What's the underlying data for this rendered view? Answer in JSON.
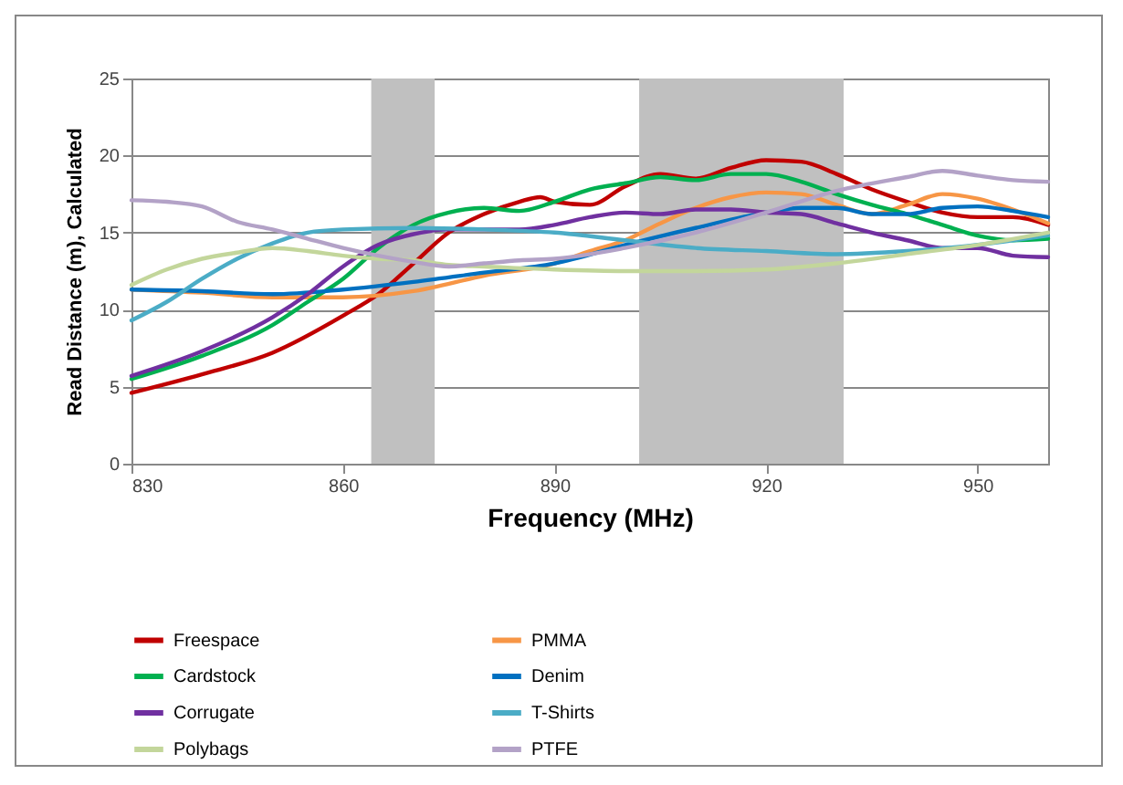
{
  "chart_data": {
    "type": "line",
    "xlabel": "Frequency (MHz)",
    "ylabel": "Read Distance (m), Calculated",
    "xlim": [
      830,
      960
    ],
    "xticks": [
      830,
      860,
      890,
      920,
      950
    ],
    "ylim": [
      0,
      25
    ],
    "yticks": [
      0,
      5,
      10,
      15,
      20,
      25
    ],
    "grid": "y",
    "legend": "bottom",
    "marker": "none",
    "line_style": "solid",
    "bands": [
      {
        "axis": "x",
        "from": 864,
        "to": 873,
        "color": "#c0c0c0"
      },
      {
        "axis": "x",
        "from": 902,
        "to": 931,
        "color": "#c0c0c0"
      }
    ],
    "series": [
      {
        "name": "Freespace",
        "color": "#c00000",
        "x": [
          830,
          840,
          850,
          860,
          865,
          870,
          875,
          880,
          885,
          888,
          890,
          895,
          900,
          905,
          910,
          915,
          920,
          925,
          930,
          935,
          940,
          945,
          950,
          955,
          960
        ],
        "values": [
          4.6,
          5.8,
          7.2,
          9.6,
          11,
          13,
          15,
          16.2,
          17,
          17.3,
          17,
          16.8,
          18,
          18.8,
          18.5,
          19.2,
          19.7,
          19.6,
          18.8,
          17.8,
          17,
          16.3,
          16,
          16,
          15.5
        ]
      },
      {
        "name": "PMMA",
        "color": "#f79646",
        "x": [
          830,
          840,
          850,
          860,
          870,
          880,
          890,
          895,
          900,
          905,
          910,
          915,
          920,
          925,
          930,
          935,
          940,
          945,
          950,
          955,
          960
        ],
        "values": [
          11.3,
          11.1,
          10.8,
          10.8,
          11.2,
          12.2,
          13,
          13.8,
          14.5,
          15.6,
          16.6,
          17.3,
          17.6,
          17.5,
          16.8,
          16.2,
          16.8,
          17.5,
          17.2,
          16.5,
          15.6
        ]
      },
      {
        "name": "Cardstock",
        "color": "#00b050",
        "x": [
          830,
          840,
          850,
          855,
          860,
          865,
          870,
          875,
          880,
          885,
          890,
          895,
          900,
          905,
          910,
          915,
          920,
          925,
          930,
          935,
          940,
          945,
          950,
          955,
          960
        ],
        "values": [
          5.5,
          7,
          9,
          10.5,
          12,
          14,
          15.5,
          16.3,
          16.6,
          16.4,
          17,
          17.8,
          18.2,
          18.6,
          18.4,
          18.8,
          18.8,
          18.3,
          17.5,
          16.8,
          16.2,
          15.5,
          14.8,
          14.5,
          14.6
        ]
      },
      {
        "name": "Denim",
        "color": "#0070c0",
        "x": [
          830,
          840,
          850,
          860,
          870,
          880,
          890,
          900,
          910,
          920,
          925,
          930,
          935,
          940,
          945,
          950,
          955,
          960
        ],
        "values": [
          11.3,
          11.2,
          11,
          11.3,
          11.8,
          12.4,
          13,
          14.2,
          15.3,
          16.3,
          16.6,
          16.6,
          16.2,
          16.2,
          16.6,
          16.7,
          16.4,
          16
        ]
      },
      {
        "name": "Corrugate",
        "color": "#7030a0",
        "x": [
          830,
          840,
          850,
          855,
          860,
          865,
          870,
          875,
          880,
          885,
          890,
          895,
          900,
          905,
          910,
          915,
          920,
          925,
          930,
          935,
          940,
          945,
          950,
          955,
          960
        ],
        "values": [
          5.7,
          7.3,
          9.5,
          11,
          12.8,
          14.2,
          14.9,
          15.2,
          15.2,
          15.2,
          15.5,
          16,
          16.3,
          16.2,
          16.5,
          16.5,
          16.3,
          16.2,
          15.6,
          15,
          14.5,
          14,
          14,
          13.5,
          13.4
        ]
      },
      {
        "name": "T-Shirts",
        "color": "#4bacc6",
        "x": [
          830,
          835,
          840,
          845,
          850,
          855,
          860,
          870,
          880,
          890,
          900,
          910,
          920,
          930,
          940,
          950,
          955,
          960
        ],
        "values": [
          9.3,
          10.5,
          12,
          13.3,
          14.3,
          15,
          15.2,
          15.3,
          15.2,
          15,
          14.5,
          14,
          13.8,
          13.6,
          13.8,
          14.2,
          14.5,
          14.8
        ]
      },
      {
        "name": "Polybags",
        "color": "#c3d69b",
        "x": [
          830,
          835,
          840,
          845,
          850,
          855,
          860,
          865,
          870,
          875,
          880,
          890,
          900,
          910,
          920,
          930,
          940,
          950,
          960
        ],
        "values": [
          11.6,
          12.6,
          13.3,
          13.7,
          14,
          13.8,
          13.5,
          13.3,
          13.2,
          12.9,
          12.8,
          12.6,
          12.5,
          12.5,
          12.6,
          13,
          13.6,
          14.2,
          15
        ]
      },
      {
        "name": "PTFE",
        "color": "#b3a2c7",
        "x": [
          830,
          835,
          840,
          845,
          850,
          855,
          860,
          865,
          870,
          875,
          880,
          885,
          890,
          900,
          910,
          920,
          930,
          940,
          945,
          950,
          955,
          960
        ],
        "values": [
          17.1,
          17,
          16.7,
          15.7,
          15.2,
          14.6,
          14,
          13.5,
          13.1,
          12.8,
          13,
          13.2,
          13.3,
          14,
          15,
          16.3,
          17.7,
          18.6,
          19,
          18.7,
          18.4,
          18.3
        ]
      }
    ]
  }
}
